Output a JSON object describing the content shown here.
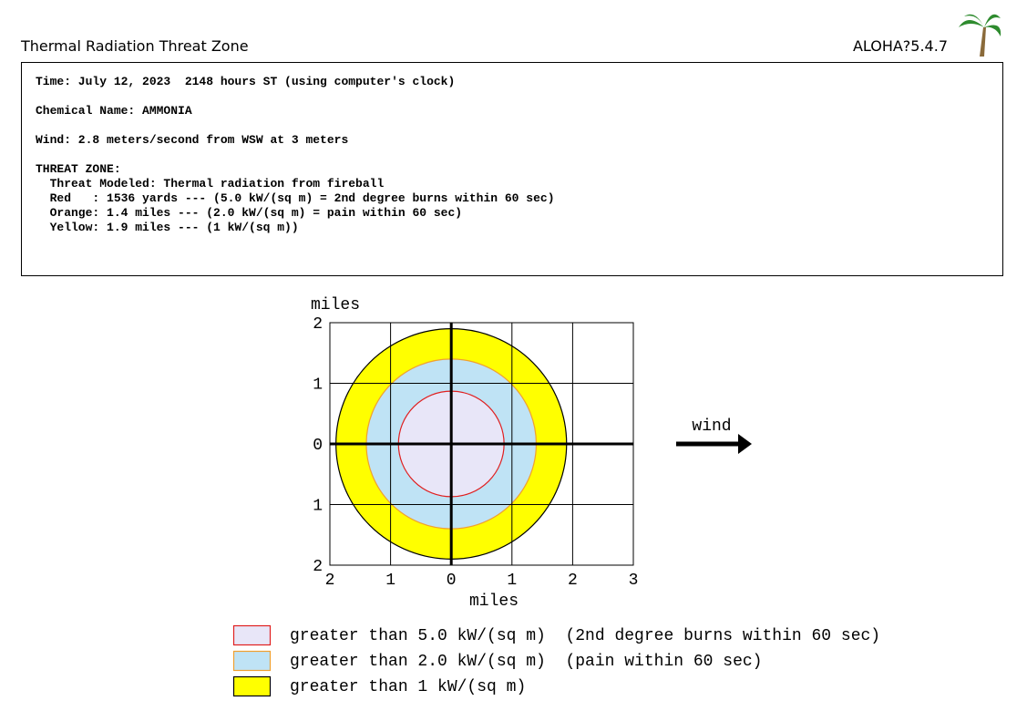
{
  "header": {
    "title": "Thermal Radiation Threat Zone",
    "version": "ALOHA?5.4.7"
  },
  "info": {
    "lines": [
      "Time: July 12, 2023  2148 hours ST (using computer's clock)",
      "Chemical Name: AMMONIA",
      "Wind: 2.8 meters/second from WSW at 3 meters",
      "THREAT ZONE:",
      "  Threat Modeled: Thermal radiation from fireball",
      "  Red   : 1536 yards --- (5.0 kW/(sq m) = 2nd degree burns within 60 sec)",
      "  Orange: 1.4 miles --- (2.0 kW/(sq m) = pain within 60 sec)",
      "  Yellow: 1.9 miles --- (1 kW/(sq m))"
    ]
  },
  "chart_data": {
    "type": "threat-zone",
    "xlabel": "miles",
    "ylabel": "miles",
    "wind_label": "wind",
    "xlim": [
      -2,
      3
    ],
    "ylim": [
      -2,
      2
    ],
    "xticks": [
      {
        "value": -2,
        "label": "2"
      },
      {
        "value": -1,
        "label": "1"
      },
      0,
      1,
      2,
      3
    ],
    "yticks": [
      {
        "value": -2,
        "label": "2"
      },
      {
        "value": -1,
        "label": "1"
      },
      0,
      1,
      2
    ],
    "grid": true,
    "series": [
      {
        "name": "greater than 1 kW/(sq m)",
        "color": "#ffff00",
        "stroke": "#000000",
        "values": [
          1.9
        ]
      },
      {
        "name": "greater than 2.0 kW/(sq m)  (pain within 60 sec)",
        "color": "#bfe3f5",
        "stroke": "#f0a030",
        "values": [
          1.4
        ]
      },
      {
        "name": "greater than 5.0 kW/(sq m)  (2nd degree burns within 60 sec)",
        "color": "#e8e6f8",
        "stroke": "#e02020",
        "values": [
          0.87
        ]
      }
    ]
  }
}
